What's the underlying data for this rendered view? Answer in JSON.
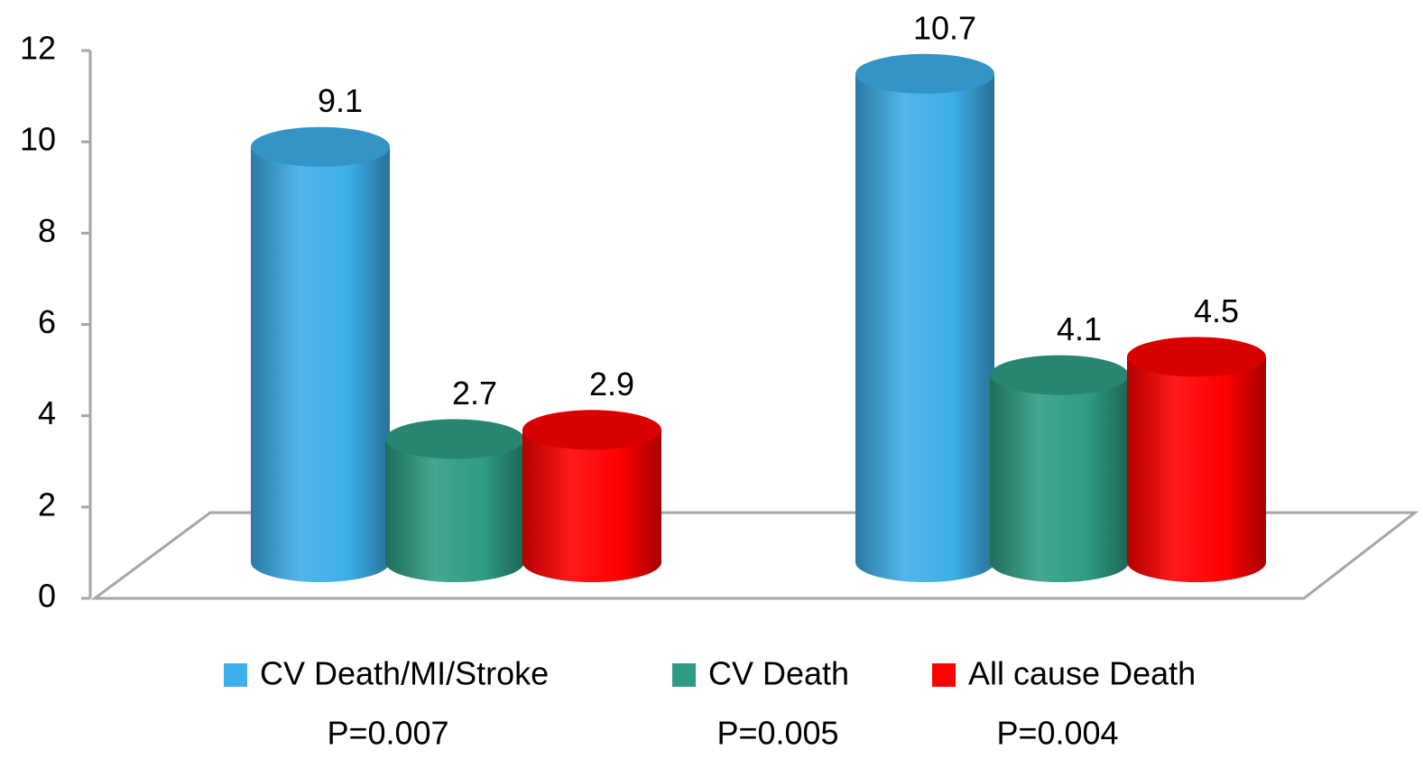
{
  "chart_data": {
    "type": "bar",
    "categories": [
      null,
      null
    ],
    "series": [
      {
        "name": "CV Death/MI/Stroke",
        "color": "#3daee9",
        "values": [
          9.1,
          10.7
        ]
      },
      {
        "name": "CV Death",
        "color": "#2e9c84",
        "values": [
          2.7,
          4.1
        ]
      },
      {
        "name": "All cause Death",
        "color": "#ff0000",
        "values": [
          2.9,
          4.5
        ]
      }
    ],
    "ylim": [
      0,
      12
    ],
    "yticks": [
      0,
      2,
      4,
      6,
      8,
      10,
      12
    ],
    "grid": false,
    "legend": "bottom",
    "annotations": [
      "P=0.007",
      "P=0.005",
      "P=0.004"
    ]
  }
}
